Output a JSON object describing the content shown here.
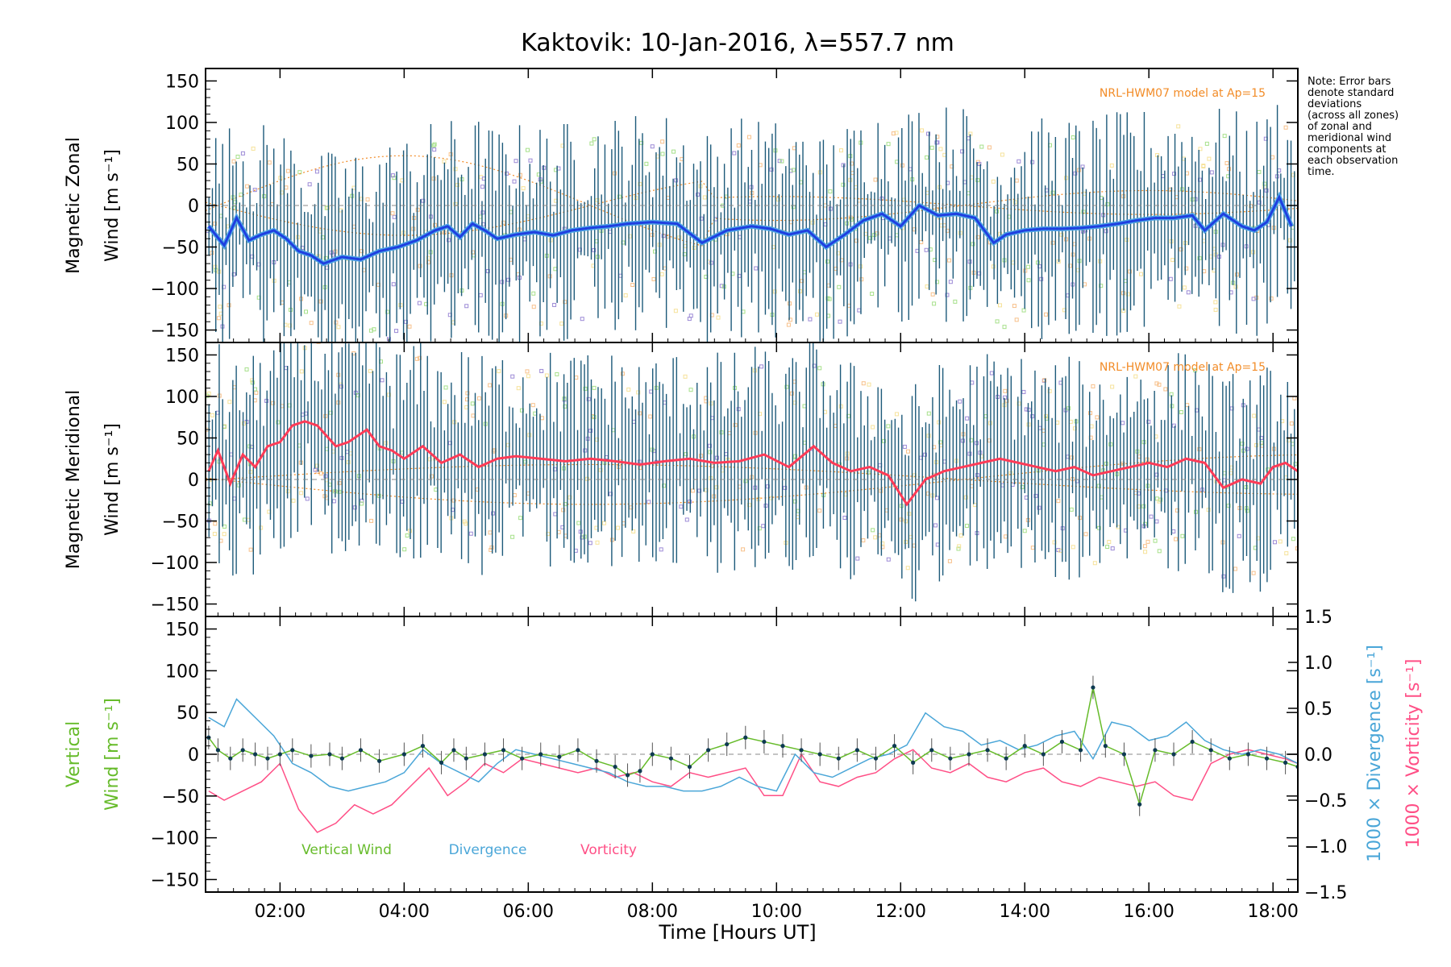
{
  "title": "Kaktovik: 10-Jan-2016, λ=557.7 nm",
  "x_axis_label": "Time [Hours UT]",
  "note_lines": [
    "Note: Error bars",
    "denote standard",
    "deviations",
    "(across all zones)",
    "of zonal and",
    "meridional wind",
    "components at",
    "each observation",
    "time."
  ],
  "colors": {
    "zonal": "#1f3fe0",
    "zonal_light": "#4fa6e6",
    "meridional": "#ff3b57",
    "errorbar": "#1d5a7a",
    "model": "#f28c28",
    "vertical": "#66bb2a",
    "divergence": "#4aa6d8",
    "vorticity": "#ff4f86",
    "scatter_orange": "#f7c08a",
    "scatter_yellow": "#f6e29a",
    "scatter_purple": "#9c8ad6",
    "scatter_green": "#a6e08a"
  },
  "chart_data": [
    {
      "type": "line",
      "panel": "zonal",
      "ylabel_line1": "Magnetic Zonal",
      "ylabel_line2": "Wind [m s⁻¹]",
      "annotation": "NRL-HWM07 model at Ap=15",
      "ylim": [
        -165,
        165
      ],
      "yticks": [
        "150",
        "100",
        "50",
        "0",
        "−50",
        "−100",
        "−150"
      ],
      "ytick_values": [
        150,
        100,
        50,
        0,
        -50,
        -100,
        -150
      ],
      "x_range_hours": [
        0.8,
        18.4
      ],
      "xticks": [
        "02:00",
        "04:00",
        "06:00",
        "08:00",
        "10:00",
        "12:00",
        "14:00",
        "16:00",
        "18:00"
      ],
      "xtick_values": [
        2,
        4,
        6,
        8,
        10,
        12,
        14,
        16,
        18
      ],
      "series": [
        {
          "x": [
            0.85,
            1.1,
            1.3,
            1.5,
            1.7,
            1.9,
            2.1,
            2.3,
            2.5,
            2.7,
            3.0,
            3.3,
            3.6,
            3.9,
            4.2,
            4.5,
            4.7,
            4.9,
            5.1,
            5.3,
            5.5,
            5.8,
            6.1,
            6.4,
            6.7,
            7.0,
            7.3,
            7.6,
            8.0,
            8.4,
            8.8,
            9.2,
            9.6,
            9.9,
            10.2,
            10.5,
            10.8,
            11.1,
            11.4,
            11.7,
            12.0,
            12.3,
            12.6,
            12.9,
            13.2,
            13.5,
            13.7,
            14.0,
            14.3,
            14.6,
            14.9,
            15.2,
            15.5,
            15.8,
            16.1,
            16.4,
            16.7,
            16.9,
            17.2,
            17.5,
            17.7,
            17.9,
            18.1,
            18.3
          ],
          "values": [
            -25,
            -48,
            -15,
            -42,
            -35,
            -30,
            -40,
            -55,
            -60,
            -70,
            -62,
            -65,
            -55,
            -50,
            -42,
            -30,
            -25,
            -38,
            -22,
            -30,
            -40,
            -35,
            -32,
            -36,
            -30,
            -27,
            -25,
            -22,
            -20,
            -22,
            -45,
            -30,
            -25,
            -28,
            -35,
            -30,
            -50,
            -35,
            -18,
            -10,
            -25,
            0,
            -12,
            -10,
            -15,
            -45,
            -35,
            -30,
            -28,
            -28,
            -27,
            -25,
            -22,
            -18,
            -15,
            -15,
            -12,
            -30,
            -10,
            -25,
            -30,
            -20,
            10,
            -25
          ]
        }
      ]
    },
    {
      "type": "line",
      "panel": "meridional",
      "ylabel_line1": "Magnetic Meridional",
      "ylabel_line2": "Wind [m s⁻¹]",
      "annotation": "NRL-HWM07 model at Ap=15",
      "ylim": [
        -165,
        165
      ],
      "yticks": [
        "150",
        "100",
        "50",
        "0",
        "−50",
        "−100",
        "−150"
      ],
      "ytick_values": [
        150,
        100,
        50,
        0,
        -50,
        -100,
        -150
      ],
      "series": [
        {
          "x": [
            0.85,
            1.0,
            1.2,
            1.4,
            1.6,
            1.8,
            2.0,
            2.2,
            2.4,
            2.6,
            2.9,
            3.1,
            3.4,
            3.6,
            3.8,
            4.0,
            4.3,
            4.6,
            4.9,
            5.2,
            5.5,
            5.8,
            6.2,
            6.6,
            7.0,
            7.4,
            7.8,
            8.2,
            8.6,
            9.0,
            9.4,
            9.8,
            10.2,
            10.6,
            10.9,
            11.2,
            11.5,
            11.8,
            12.1,
            12.4,
            12.7,
            13.0,
            13.3,
            13.6,
            13.9,
            14.2,
            14.5,
            14.8,
            15.1,
            15.4,
            15.7,
            16.0,
            16.3,
            16.6,
            16.9,
            17.2,
            17.5,
            17.8,
            18.0,
            18.2,
            18.4
          ],
          "values": [
            10,
            35,
            -5,
            30,
            15,
            40,
            45,
            65,
            70,
            65,
            40,
            45,
            60,
            40,
            35,
            25,
            40,
            20,
            30,
            15,
            25,
            28,
            25,
            22,
            25,
            22,
            18,
            22,
            25,
            20,
            22,
            30,
            15,
            40,
            20,
            10,
            15,
            5,
            -30,
            0,
            10,
            15,
            20,
            25,
            20,
            15,
            10,
            15,
            5,
            10,
            15,
            20,
            15,
            25,
            20,
            -10,
            0,
            -5,
            15,
            20,
            10
          ]
        }
      ]
    },
    {
      "type": "line",
      "panel": "vertical",
      "ylabel_line1": "Vertical",
      "ylabel_line2": "Wind [m s⁻¹]",
      "ylim": [
        -165,
        165
      ],
      "yticks": [
        "150",
        "100",
        "50",
        "0",
        "−50",
        "−100",
        "−150"
      ],
      "ytick_values": [
        150,
        100,
        50,
        0,
        -50,
        -100,
        -150
      ],
      "y2_label_divergence": "1000 × Divergence [s⁻¹]",
      "y2_label_vorticity": "1000 × Vorticity [s⁻¹]",
      "y2lim": [
        -1.5,
        1.5
      ],
      "y2ticks": [
        "1.5",
        "1.0",
        "0.5",
        "0.0",
        "−0.5",
        "−1.0",
        "−1.5"
      ],
      "y2tick_values": [
        1.5,
        1.0,
        0.5,
        0.0,
        -0.5,
        -1.0,
        -1.5
      ],
      "legend": [
        "Vertical Wind",
        "Divergence",
        "Vorticity"
      ],
      "series": [
        {
          "name": "Vertical Wind",
          "x": [
            0.85,
            1.0,
            1.2,
            1.4,
            1.6,
            1.8,
            2.0,
            2.2,
            2.5,
            2.8,
            3.0,
            3.3,
            3.6,
            4.0,
            4.3,
            4.6,
            4.8,
            5.0,
            5.3,
            5.6,
            5.9,
            6.2,
            6.5,
            6.8,
            7.1,
            7.4,
            7.6,
            7.8,
            8.0,
            8.3,
            8.6,
            8.9,
            9.2,
            9.5,
            9.8,
            10.1,
            10.4,
            10.7,
            11.0,
            11.3,
            11.6,
            11.9,
            12.2,
            12.5,
            12.8,
            13.1,
            13.4,
            13.7,
            14.0,
            14.3,
            14.6,
            14.9,
            15.1,
            15.3,
            15.6,
            15.85,
            16.1,
            16.4,
            16.7,
            17.0,
            17.3,
            17.6,
            17.9,
            18.2,
            18.4
          ],
          "values": [
            20,
            5,
            -5,
            5,
            0,
            -5,
            0,
            5,
            -2,
            0,
            -5,
            5,
            -8,
            0,
            10,
            -10,
            5,
            -5,
            0,
            5,
            -5,
            0,
            -3,
            5,
            -8,
            -15,
            -25,
            -20,
            0,
            -5,
            -15,
            5,
            12,
            20,
            15,
            10,
            5,
            0,
            -5,
            5,
            -5,
            10,
            -10,
            5,
            -5,
            0,
            5,
            -5,
            10,
            0,
            15,
            5,
            80,
            10,
            0,
            -60,
            5,
            0,
            15,
            5,
            -5,
            0,
            -5,
            -10,
            -15
          ]
        },
        {
          "name": "Divergence",
          "x": [
            0.85,
            1.1,
            1.3,
            1.6,
            1.9,
            2.2,
            2.5,
            2.8,
            3.1,
            3.4,
            3.7,
            4.0,
            4.3,
            4.6,
            4.9,
            5.2,
            5.5,
            5.8,
            6.1,
            6.4,
            6.7,
            7.0,
            7.3,
            7.6,
            7.9,
            8.2,
            8.5,
            8.8,
            9.1,
            9.4,
            9.7,
            10.0,
            10.3,
            10.6,
            10.9,
            11.2,
            11.5,
            11.8,
            12.1,
            12.4,
            12.7,
            13.0,
            13.3,
            13.6,
            13.9,
            14.2,
            14.5,
            14.8,
            15.1,
            15.4,
            15.7,
            16.0,
            16.3,
            16.6,
            16.9,
            17.2,
            17.5,
            17.8,
            18.1,
            18.4
          ],
          "values": [
            0.4,
            0.3,
            0.6,
            0.4,
            0.2,
            -0.1,
            -0.2,
            -0.35,
            -0.4,
            -0.35,
            -0.3,
            -0.2,
            0.05,
            -0.1,
            -0.2,
            -0.3,
            -0.1,
            0.05,
            0.0,
            -0.05,
            -0.1,
            -0.15,
            -0.2,
            -0.3,
            -0.35,
            -0.35,
            -0.4,
            -0.4,
            -0.35,
            -0.25,
            -0.35,
            -0.4,
            0.0,
            -0.2,
            -0.25,
            -0.15,
            -0.05,
            0.0,
            0.1,
            0.45,
            0.3,
            0.25,
            0.1,
            0.15,
            0.05,
            0.1,
            0.2,
            0.25,
            -0.05,
            0.35,
            0.3,
            0.15,
            0.2,
            0.35,
            0.15,
            0.05,
            0.0,
            0.05,
            0.0,
            -0.1
          ]
        },
        {
          "name": "Vorticity",
          "x": [
            0.85,
            1.1,
            1.4,
            1.7,
            2.0,
            2.3,
            2.6,
            2.9,
            3.2,
            3.5,
            3.8,
            4.1,
            4.4,
            4.7,
            5.0,
            5.3,
            5.6,
            5.9,
            6.2,
            6.5,
            6.8,
            7.1,
            7.4,
            7.7,
            8.0,
            8.3,
            8.6,
            8.9,
            9.2,
            9.5,
            9.8,
            10.1,
            10.4,
            10.7,
            11.0,
            11.3,
            11.6,
            11.9,
            12.2,
            12.5,
            12.8,
            13.1,
            13.4,
            13.7,
            14.0,
            14.3,
            14.6,
            14.9,
            15.2,
            15.5,
            15.8,
            16.1,
            16.4,
            16.7,
            17.0,
            17.3,
            17.6,
            17.9,
            18.2,
            18.4
          ],
          "values": [
            -0.4,
            -0.5,
            -0.4,
            -0.3,
            -0.1,
            -0.6,
            -0.85,
            -0.75,
            -0.55,
            -0.65,
            -0.55,
            -0.35,
            -0.15,
            -0.45,
            -0.3,
            -0.1,
            -0.2,
            -0.05,
            -0.1,
            -0.15,
            -0.2,
            -0.15,
            -0.25,
            -0.2,
            -0.3,
            -0.35,
            -0.2,
            -0.25,
            -0.2,
            -0.15,
            -0.45,
            -0.45,
            0.0,
            -0.3,
            -0.35,
            -0.25,
            -0.2,
            -0.05,
            0.05,
            -0.15,
            -0.2,
            -0.1,
            -0.25,
            -0.3,
            -0.2,
            -0.15,
            -0.3,
            -0.35,
            -0.25,
            -0.3,
            -0.35,
            -0.3,
            -0.45,
            -0.5,
            -0.1,
            0.0,
            0.05,
            0.0,
            -0.05,
            -0.1
          ]
        }
      ]
    }
  ]
}
